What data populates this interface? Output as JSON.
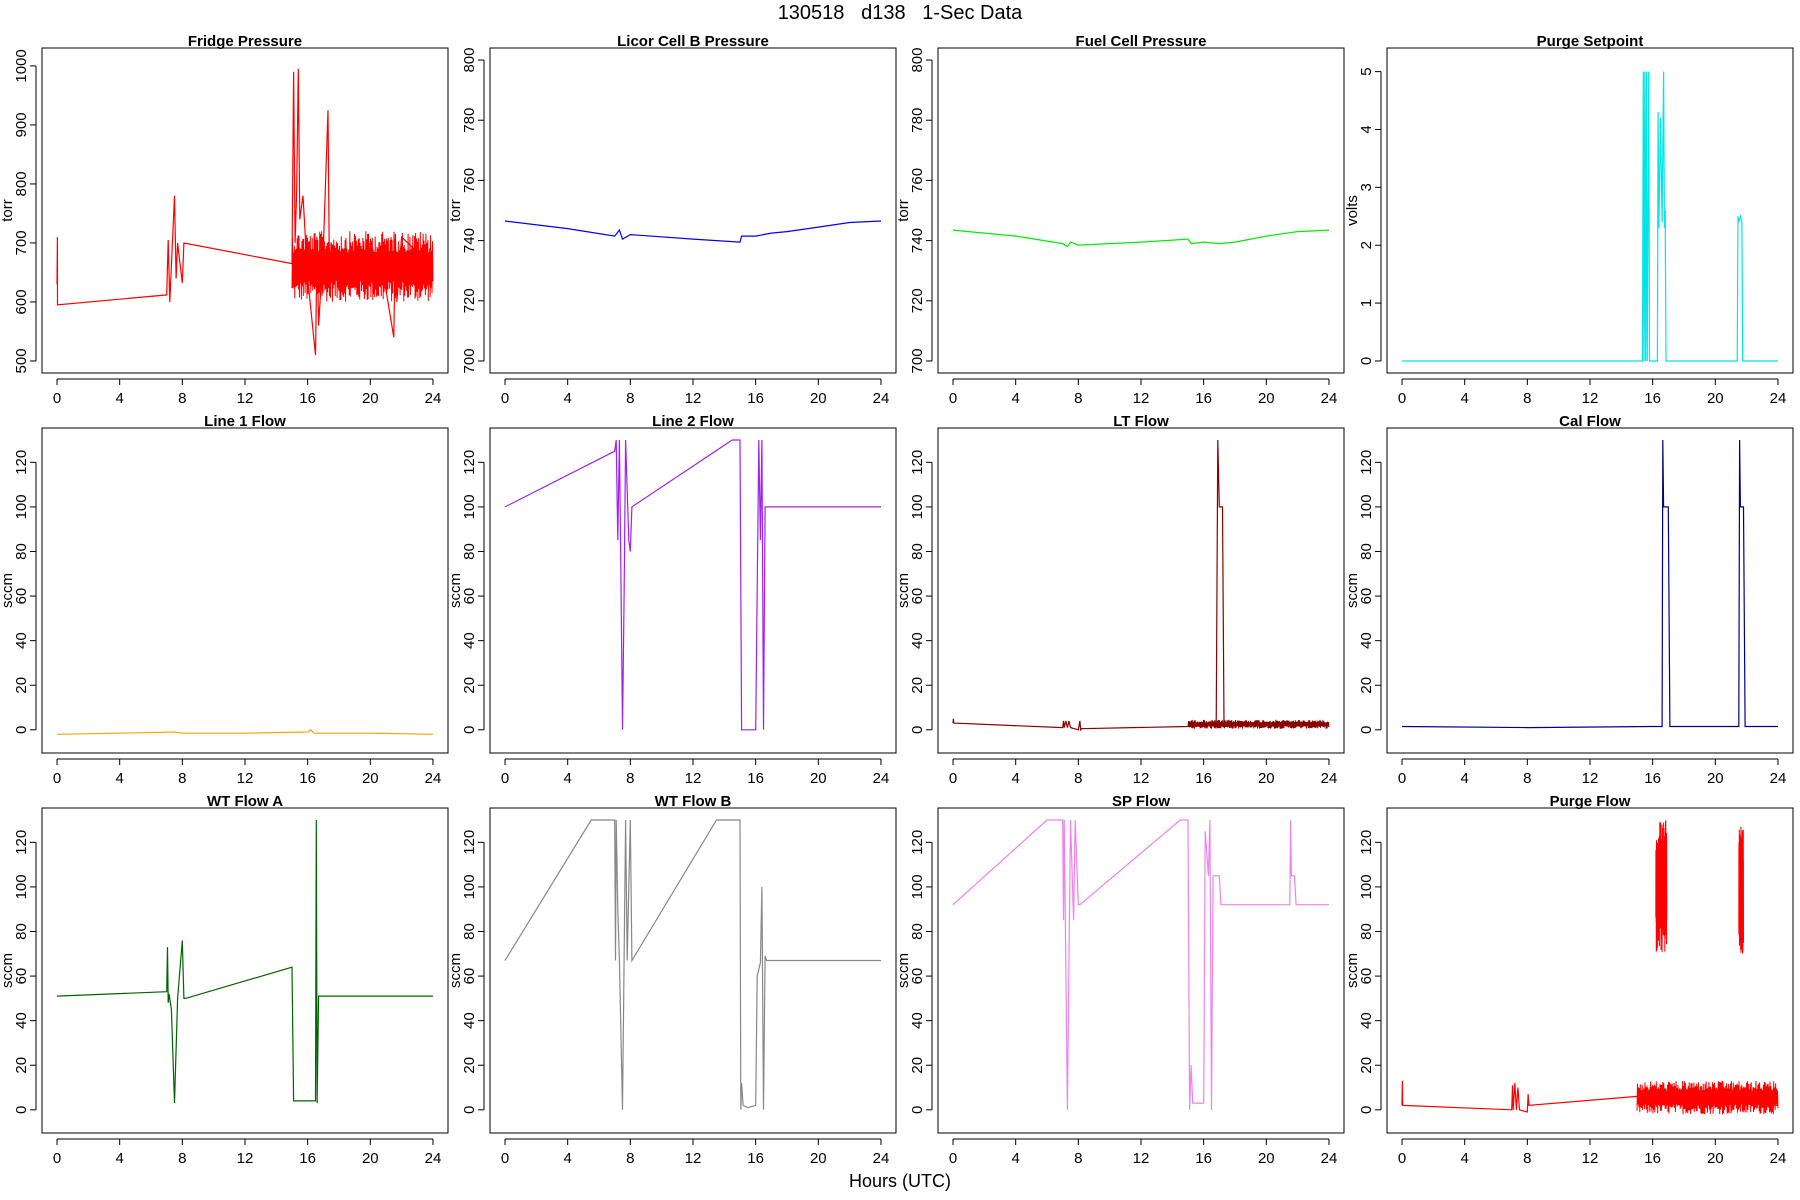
{
  "figure": {
    "title": "130518   d138   1-Sec Data",
    "xlabel": "Hours (UTC)"
  },
  "chart_data": [
    {
      "type": "line",
      "title": "Fridge Pressure",
      "ylabel": "torr",
      "color": "#ff0000",
      "xlim": [
        0,
        24
      ],
      "ylim": [
        500,
        1010
      ],
      "xticks": [
        0,
        4,
        8,
        12,
        16,
        20,
        24
      ],
      "yticks": [
        500,
        600,
        700,
        800,
        900,
        1000
      ],
      "x": [
        0,
        0.02,
        0.03,
        7.0,
        7.1,
        7.2,
        7.5,
        7.6,
        7.7,
        8.0,
        8.1,
        15.0,
        15.1,
        15.2,
        15.3,
        15.4,
        15.5,
        15.7,
        16.0,
        16.5,
        16.6,
        16.7,
        17.0,
        17.3,
        17.4,
        17.5,
        18.0,
        20.0,
        21.0,
        21.5,
        21.6,
        21.7,
        22.0,
        24.0
      ],
      "y": [
        630,
        710,
        595,
        612,
        705,
        600,
        780,
        640,
        700,
        632,
        700,
        665,
        990,
        700,
        790,
        995,
        740,
        780,
        640,
        510,
        700,
        560,
        690,
        925,
        610,
        700,
        620,
        700,
        620,
        540,
        715,
        600,
        710,
        660
      ],
      "band": {
        "x_start": 15.0,
        "x_end": 24.0,
        "low": 600,
        "high": 720
      }
    },
    {
      "type": "line",
      "title": "Licor Cell B Pressure",
      "ylabel": "torr",
      "color": "#0000ff",
      "xlim": [
        0,
        24
      ],
      "ylim": [
        700,
        800
      ],
      "xticks": [
        0,
        4,
        8,
        12,
        16,
        20,
        24
      ],
      "yticks": [
        700,
        720,
        740,
        760,
        780,
        800
      ],
      "x": [
        0,
        4,
        7.0,
        7.3,
        7.5,
        8.0,
        12,
        15.0,
        15.1,
        16.0,
        17.0,
        18.0,
        20.0,
        22.0,
        24.0
      ],
      "y": [
        746.5,
        744,
        741.5,
        743.5,
        740.5,
        742,
        740.5,
        739.5,
        741.5,
        741.5,
        742.5,
        743,
        744.5,
        746,
        746.5
      ]
    },
    {
      "type": "line",
      "title": "Fuel Cell Pressure",
      "ylabel": "torr",
      "color": "#00ee00",
      "xlim": [
        0,
        24
      ],
      "ylim": [
        700,
        800
      ],
      "xticks": [
        0,
        4,
        8,
        12,
        16,
        20,
        24
      ],
      "yticks": [
        700,
        720,
        740,
        760,
        780,
        800
      ],
      "x": [
        0,
        4,
        7.0,
        7.3,
        7.5,
        8.0,
        12,
        15.0,
        15.2,
        16.0,
        17.0,
        18.0,
        20.0,
        22.0,
        24.0
      ],
      "y": [
        743.5,
        741.5,
        739,
        738,
        739.5,
        738.5,
        739.5,
        740.5,
        739,
        739.5,
        739,
        739.5,
        741.5,
        743,
        743.5
      ]
    },
    {
      "type": "line",
      "title": "Purge Setpoint",
      "ylabel": "volts",
      "color": "#00e5e5",
      "xlim": [
        0,
        24
      ],
      "ylim": [
        0,
        5.2
      ],
      "xticks": [
        0,
        4,
        8,
        12,
        16,
        20,
        24
      ],
      "yticks": [
        0,
        1,
        2,
        3,
        4,
        5
      ],
      "x": [
        0,
        15.35,
        15.4,
        15.45,
        15.5,
        15.55,
        15.6,
        15.65,
        15.75,
        15.8,
        15.85,
        16.3,
        16.35,
        16.4,
        16.5,
        16.6,
        16.7,
        16.75,
        16.8,
        16.85,
        17.0,
        21.4,
        21.45,
        21.5,
        21.6,
        21.7,
        21.75,
        24.0
      ],
      "y": [
        0,
        0,
        5,
        0,
        5,
        0,
        5,
        0,
        5,
        0,
        0,
        0,
        4.3,
        2.3,
        4.2,
        2.4,
        5.0,
        2.3,
        2.6,
        0,
        0,
        0,
        2.5,
        2.4,
        2.5,
        2.4,
        0,
        0
      ]
    },
    {
      "type": "line",
      "title": "Line 1 Flow",
      "ylabel": "sccm",
      "color": "#ffa500",
      "xlim": [
        0,
        24
      ],
      "ylim": [
        -5,
        130
      ],
      "xticks": [
        0,
        4,
        8,
        12,
        16,
        20,
        24
      ],
      "yticks": [
        0,
        20,
        40,
        60,
        80,
        100,
        120
      ],
      "x": [
        0,
        4,
        7.5,
        8,
        12,
        16,
        16.2,
        16.4,
        20,
        24
      ],
      "y": [
        -2,
        -1.5,
        -1,
        -1.5,
        -1.5,
        -1,
        0,
        -1.5,
        -1.5,
        -2
      ]
    },
    {
      "type": "line",
      "title": "Line 2 Flow",
      "ylabel": "sccm",
      "color": "#a020f0",
      "xlim": [
        0,
        24
      ],
      "ylim": [
        -5,
        130
      ],
      "xticks": [
        0,
        4,
        8,
        12,
        16,
        20,
        24
      ],
      "yticks": [
        0,
        20,
        40,
        60,
        80,
        100,
        120
      ],
      "x": [
        0,
        7.0,
        7.1,
        7.2,
        7.3,
        7.4,
        7.5,
        7.6,
        7.7,
        7.9,
        8.0,
        8.1,
        14.5,
        15.0,
        15.1,
        15.2,
        16.0,
        16.2,
        16.3,
        16.4,
        16.5,
        16.6,
        24.0
      ],
      "y": [
        100,
        125,
        130,
        85,
        130,
        70,
        0,
        60,
        130,
        85,
        80,
        100,
        130,
        130,
        0,
        0,
        0,
        130,
        85,
        130,
        0,
        100,
        100
      ]
    },
    {
      "type": "line",
      "title": "LT Flow",
      "ylabel": "sccm",
      "color": "#8b0000",
      "xlim": [
        0,
        24
      ],
      "ylim": [
        -5,
        130
      ],
      "xticks": [
        0,
        4,
        8,
        12,
        16,
        20,
        24
      ],
      "yticks": [
        0,
        20,
        40,
        60,
        80,
        100,
        120
      ],
      "x": [
        0,
        0.02,
        0.04,
        7.0,
        7.05,
        7.1,
        7.2,
        7.3,
        7.4,
        7.5,
        8.0,
        8.1,
        8.15,
        8.2,
        15.0,
        16.5,
        16.8,
        16.9,
        17.0,
        17.2,
        17.3,
        24.0
      ],
      "y": [
        3,
        5,
        3,
        1,
        4,
        1,
        4,
        1,
        4,
        1,
        0,
        4,
        0,
        0.5,
        1.5,
        2,
        2,
        130,
        100,
        100,
        3,
        3
      ],
      "band": {
        "x_start": 15.0,
        "x_end": 24.0,
        "low": 0.5,
        "high": 4.5
      }
    },
    {
      "type": "line",
      "title": "Cal Flow",
      "ylabel": "sccm",
      "color": "#00008b",
      "xlim": [
        0,
        24
      ],
      "ylim": [
        -5,
        130
      ],
      "xticks": [
        0,
        4,
        8,
        12,
        16,
        20,
        24
      ],
      "yticks": [
        0,
        20,
        40,
        60,
        80,
        100,
        120
      ],
      "x": [
        0,
        8,
        16.0,
        16.6,
        16.65,
        16.7,
        16.8,
        17.0,
        17.1,
        17.2,
        21.0,
        21.5,
        21.55,
        21.6,
        21.8,
        21.9,
        22.0,
        24.0
      ],
      "y": [
        1.5,
        1,
        1.5,
        1.5,
        130,
        100,
        100,
        100,
        1.5,
        1.5,
        1.5,
        1.5,
        130,
        100,
        100,
        1.5,
        1.5,
        1.5
      ]
    },
    {
      "type": "line",
      "title": "WT Flow A",
      "ylabel": "sccm",
      "color": "#006400",
      "xlim": [
        0,
        24
      ],
      "ylim": [
        -5,
        130
      ],
      "xticks": [
        0,
        4,
        8,
        12,
        16,
        20,
        24
      ],
      "yticks": [
        0,
        20,
        40,
        60,
        80,
        100,
        120
      ],
      "x": [
        0,
        7.0,
        7.05,
        7.1,
        7.15,
        7.3,
        7.5,
        7.7,
        8.0,
        8.1,
        8.2,
        15.0,
        15.1,
        15.2,
        16.0,
        16.5,
        16.55,
        16.6,
        16.7,
        17.0,
        24.0
      ],
      "y": [
        51,
        53,
        73,
        48,
        52,
        45,
        3,
        50,
        76,
        50,
        50,
        64,
        4,
        4,
        4,
        4,
        130,
        3,
        51,
        51,
        51
      ]
    },
    {
      "type": "line",
      "title": "WT Flow B",
      "ylabel": "sccm",
      "color": "#888888",
      "xlim": [
        0,
        24
      ],
      "ylim": [
        -5,
        130
      ],
      "xticks": [
        0,
        4,
        8,
        12,
        16,
        20,
        24
      ],
      "yticks": [
        0,
        20,
        40,
        60,
        80,
        100,
        120
      ],
      "x": [
        0,
        5.5,
        7.0,
        7.05,
        7.1,
        7.2,
        7.3,
        7.5,
        7.7,
        7.8,
        8.0,
        8.1,
        13.5,
        15.0,
        15.05,
        15.1,
        15.2,
        15.5,
        16.0,
        16.1,
        16.3,
        16.4,
        16.5,
        16.6,
        16.7,
        24.0
      ],
      "y": [
        67,
        130,
        130,
        67,
        130,
        90,
        67,
        0,
        130,
        67,
        130,
        67,
        130,
        130,
        0,
        12,
        2,
        1,
        2,
        60,
        66,
        100,
        0,
        69,
        67,
        67
      ]
    },
    {
      "type": "line",
      "title": "SP Flow",
      "ylabel": "sccm",
      "color": "#ee82ee",
      "xlim": [
        0,
        24
      ],
      "ylim": [
        -5,
        130
      ],
      "xticks": [
        0,
        4,
        8,
        12,
        16,
        20,
        24
      ],
      "yticks": [
        0,
        20,
        40,
        60,
        80,
        100,
        120
      ],
      "x": [
        0,
        6.0,
        7.0,
        7.05,
        7.1,
        7.3,
        7.5,
        7.7,
        7.8,
        8.0,
        8.1,
        14.5,
        15.0,
        15.1,
        15.2,
        15.3,
        16.0,
        16.1,
        16.3,
        16.4,
        16.5,
        16.6,
        16.7,
        17.0,
        17.1,
        21.5,
        21.55,
        21.6,
        21.8,
        21.9,
        24.0
      ],
      "y": [
        92,
        130,
        130,
        85,
        130,
        0,
        130,
        85,
        130,
        92,
        92,
        130,
        130,
        0,
        20,
        3,
        3,
        125,
        105,
        130,
        0,
        105,
        105,
        105,
        92,
        92,
        130,
        105,
        105,
        92,
        92
      ]
    },
    {
      "type": "line",
      "title": "Purge Flow",
      "ylabel": "sccm",
      "color": "#ff0000",
      "xlim": [
        0,
        24
      ],
      "ylim": [
        -5,
        130
      ],
      "xticks": [
        0,
        4,
        8,
        12,
        16,
        20,
        24
      ],
      "yticks": [
        0,
        20,
        40,
        60,
        80,
        100,
        120
      ],
      "x": [
        0,
        0.02,
        0.04,
        7.0,
        7.05,
        7.1,
        7.2,
        7.3,
        7.4,
        7.5,
        8.0,
        8.05,
        8.1,
        15.0,
        24.0
      ],
      "y": [
        2,
        13,
        2,
        0,
        11,
        0,
        12,
        0,
        10,
        0,
        -1,
        7,
        2,
        6,
        2
      ],
      "band": {
        "x_start": 15.0,
        "x_end": 24.0,
        "low": -2,
        "high": 13
      },
      "bursts": [
        {
          "x_start": 16.2,
          "x_end": 16.9,
          "low": 70,
          "high": 130
        },
        {
          "x_start": 21.5,
          "x_end": 21.8,
          "low": 70,
          "high": 127
        }
      ]
    }
  ]
}
